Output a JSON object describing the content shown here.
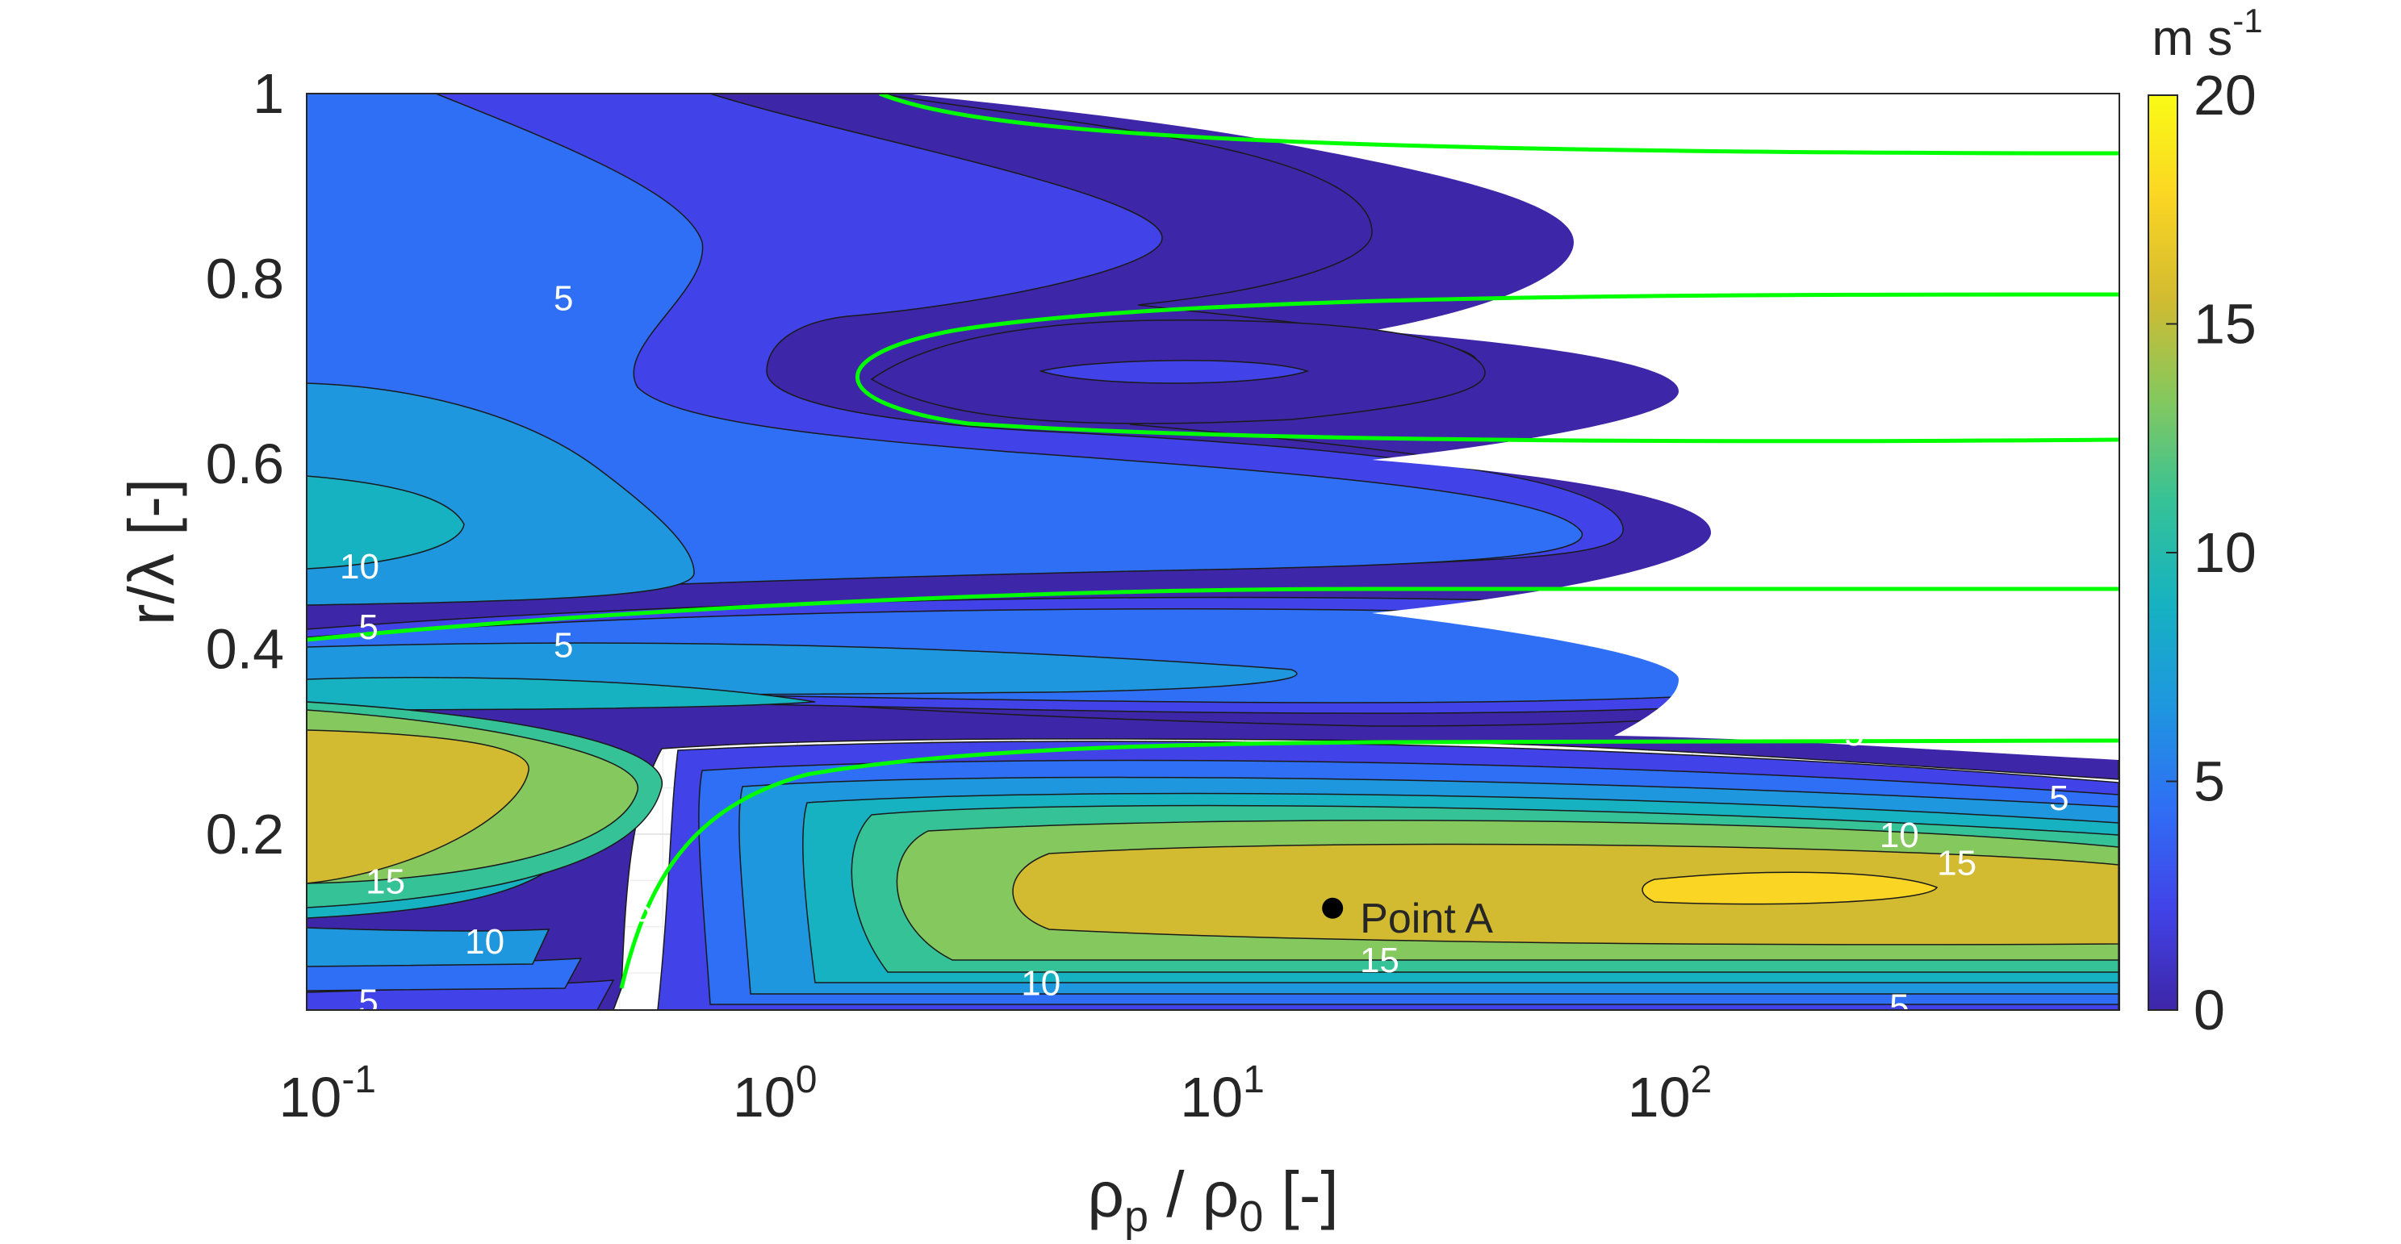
{
  "chart_data": {
    "type": "contour",
    "xlabel": {
      "rho": "ρ",
      "p": "p",
      "sep": " / ",
      "rho2": "ρ",
      "zero": "0",
      "unit": " [-]"
    },
    "ylabel": "r/λ [-]",
    "x_scale": "log",
    "xlim": [
      0.08,
      900
    ],
    "ylim": [
      0.01,
      1.0
    ],
    "x_ticks": [
      {
        "value": 0.1,
        "base": "10",
        "exp": "-1"
      },
      {
        "value": 1,
        "base": "10",
        "exp": "0"
      },
      {
        "value": 10,
        "base": "10",
        "exp": "1"
      },
      {
        "value": 100,
        "base": "10",
        "exp": "2"
      }
    ],
    "y_ticks": [
      {
        "value": 0.2,
        "label": "0.2"
      },
      {
        "value": 0.4,
        "label": "0.4"
      },
      {
        "value": 0.6,
        "label": "0.6"
      },
      {
        "value": 0.8,
        "label": "0.8"
      },
      {
        "value": 1.0,
        "label": "1"
      }
    ],
    "colorbar": {
      "unit": {
        "base": "m s",
        "exp": "-1"
      },
      "range": [
        0,
        20
      ],
      "ticks": [
        "0",
        "5",
        "10",
        "15",
        "20"
      ],
      "colormap": [
        "#3e26a8",
        "#4143e8",
        "#2f6ff5",
        "#1e97de",
        "#16b2c1",
        "#35c297",
        "#84c85e",
        "#d2bb30",
        "#fbd523",
        "#f9fb15"
      ]
    },
    "levels": [
      2.5,
      5,
      7.5,
      10,
      12.5,
      15,
      17.5
    ],
    "grid": true,
    "zero_contour_color": "#00ff00",
    "contour_labels": [
      {
        "text": "5",
        "x": 0.3,
        "y": 0.78
      },
      {
        "text": "10",
        "x": 0.105,
        "y": 0.49
      },
      {
        "text": "5",
        "x": 0.11,
        "y": 0.425
      },
      {
        "text": "5",
        "x": 0.3,
        "y": 0.405
      },
      {
        "text": "5",
        "x": 230,
        "y": 0.31
      },
      {
        "text": "15",
        "x": 0.12,
        "y": 0.15
      },
      {
        "text": "10",
        "x": 0.2,
        "y": 0.085
      },
      {
        "text": "5",
        "x": 0.11,
        "y": 0.02
      },
      {
        "text": "5",
        "x": 0.45,
        "y": 0.12
      },
      {
        "text": "10",
        "x": 3.5,
        "y": 0.04
      },
      {
        "text": "15",
        "x": 20,
        "y": 0.065
      },
      {
        "text": "10",
        "x": 290,
        "y": 0.2
      },
      {
        "text": "15",
        "x": 390,
        "y": 0.17
      },
      {
        "text": "5",
        "x": 660,
        "y": 0.24
      },
      {
        "text": "5",
        "x": 290,
        "y": 0.015
      }
    ],
    "annotation": {
      "label": "Point A",
      "x": 15.7,
      "y": 0.12
    }
  }
}
